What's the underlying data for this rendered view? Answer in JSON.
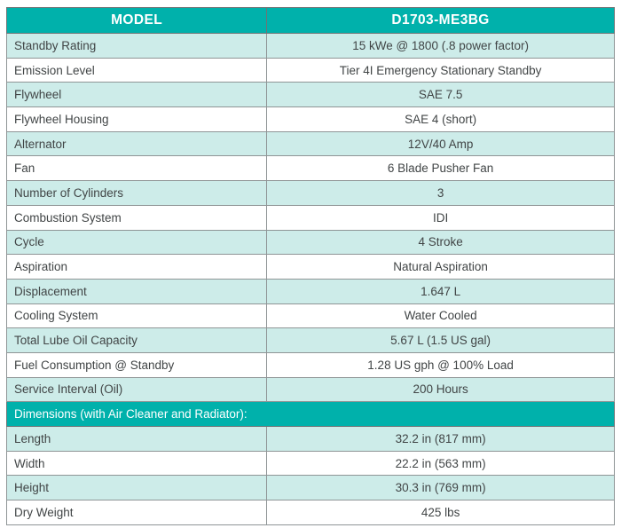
{
  "table": {
    "title_column": "MODEL",
    "model": "D1703-ME3BG",
    "rows": [
      {
        "label": "Standby Rating",
        "value": "15 kWe @ 1800 (.8 power factor)"
      },
      {
        "label": "Emission Level",
        "value": "Tier 4I Emergency Stationary Standby"
      },
      {
        "label": "Flywheel",
        "value": "SAE 7.5"
      },
      {
        "label": "Flywheel Housing",
        "value": "SAE 4 (short)"
      },
      {
        "label": "Alternator",
        "value": "12V/40 Amp"
      },
      {
        "label": "Fan",
        "value": "6 Blade Pusher Fan"
      },
      {
        "label": "Number of Cylinders",
        "value": "3"
      },
      {
        "label": "Combustion System",
        "value": "IDI"
      },
      {
        "label": "Cycle",
        "value": "4 Stroke"
      },
      {
        "label": "Aspiration",
        "value": "Natural Aspiration"
      },
      {
        "label": "Displacement",
        "value": "1.647 L"
      },
      {
        "label": "Cooling System",
        "value": "Water Cooled"
      },
      {
        "label": "Total Lube Oil Capacity",
        "value": "5.67 L (1.5 US gal)"
      },
      {
        "label": "Fuel Consumption @ Standby",
        "value": "1.28 US gph @ 100% Load"
      },
      {
        "label": "Service Interval (Oil)",
        "value": "200 Hours"
      }
    ],
    "section_header": "Dimensions (with Air Cleaner and Radiator):",
    "dimension_rows": [
      {
        "label": "Length",
        "value": "32.2 in (817 mm)"
      },
      {
        "label": "Width",
        "value": "22.2 in (563 mm)"
      },
      {
        "label": "Height",
        "value": "30.3 in (769 mm)"
      },
      {
        "label": "Dry Weight",
        "value": "425 lbs"
      }
    ],
    "colors": {
      "header_bg": "#00b1ab",
      "row_shade": "#cdece9",
      "header_text": "#ffffff",
      "body_text": "#414546",
      "border": "#8f9596"
    }
  }
}
